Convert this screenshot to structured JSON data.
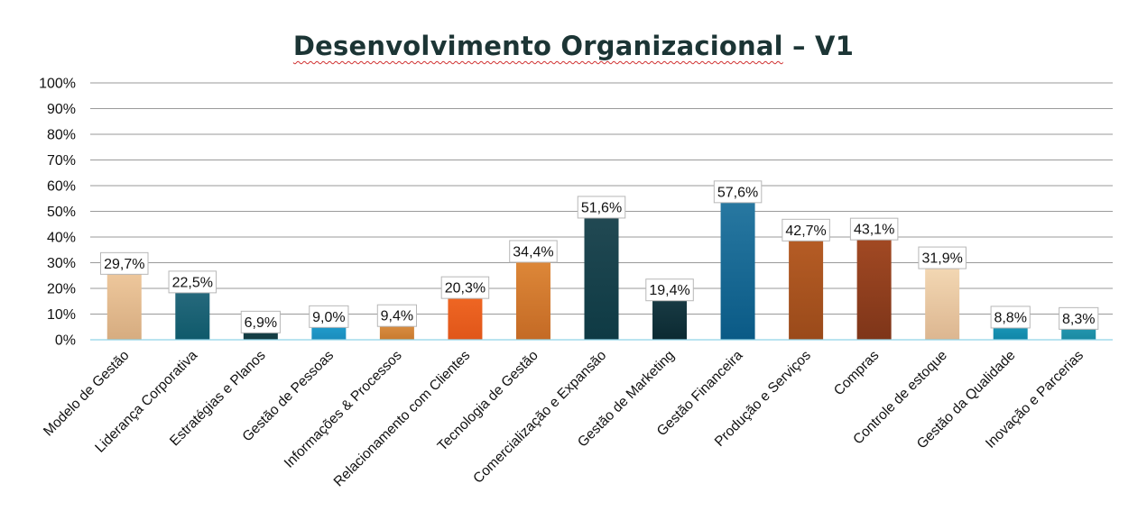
{
  "chart_data": {
    "type": "bar",
    "title_main": "Desenvolvimento Organizacional",
    "title_suffix": " – V1",
    "categories": [
      "Modelo de Gestão",
      "Liderança Corporativa",
      "Estratégias e Planos",
      "Gestão de Pessoas",
      "Informações & Processos",
      "Relacionamento com Clientes",
      "Tecnologia de Gestão",
      "Comercialização e Expansão",
      "Gestão de Marketing",
      "Gestão Financeira",
      "Produção e Serviços",
      "Compras",
      "Controle de estoque",
      "Gestão da Qualidade",
      "Inovação e Parcerias"
    ],
    "values": [
      29.7,
      22.5,
      6.9,
      9.0,
      9.4,
      20.3,
      34.4,
      51.6,
      19.4,
      57.6,
      42.7,
      43.1,
      31.9,
      8.8,
      8.3
    ],
    "value_labels": [
      "29,7%",
      "22,5%",
      "6,9%",
      "9,0%",
      "9,4%",
      "20,3%",
      "34,4%",
      "51,6%",
      "19,4%",
      "57,6%",
      "42,7%",
      "43,1%",
      "31,9%",
      "8,8%",
      "8,3%"
    ],
    "bar_colors": [
      [
        "#f1cba0",
        "#d6ac80"
      ],
      [
        "#2b6c80",
        "#0f5a6b"
      ],
      [
        "#1a4a52",
        "#123a40"
      ],
      [
        "#23a6d8",
        "#1b8dbc"
      ],
      [
        "#e39a4e",
        "#c97a2f"
      ],
      [
        "#f26a25",
        "#e0561a"
      ],
      [
        "#e08b3b",
        "#c46a25"
      ],
      [
        "#234a54",
        "#0e3a44"
      ],
      [
        "#1c3e48",
        "#0b2a32"
      ],
      [
        "#2a7aa3",
        "#0a5a86"
      ],
      [
        "#b85e26",
        "#9a4a1a"
      ],
      [
        "#a54b24",
        "#7e3519"
      ],
      [
        "#f6dcb8",
        "#dcb690"
      ],
      [
        "#1f9fc0",
        "#1187a8"
      ],
      [
        "#2a9fb8",
        "#1a8aa2"
      ]
    ],
    "y_ticks": [
      "0%",
      "10%",
      "20%",
      "30%",
      "40%",
      "50%",
      "60%",
      "70%",
      "80%",
      "90%",
      "100%"
    ],
    "ylim": [
      0,
      100
    ],
    "grid": true,
    "xlabel": "",
    "ylabel": ""
  }
}
